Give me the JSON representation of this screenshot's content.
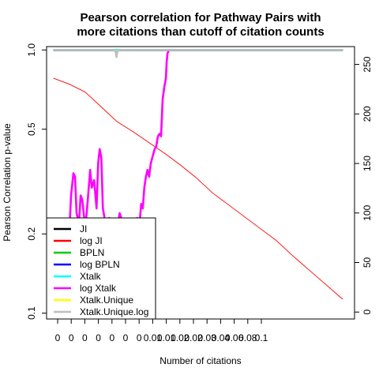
{
  "chart_data": {
    "type": "line",
    "title": [
      "Pearson correlation for Pathway Pairs with",
      "more citations than cutoff of citation counts"
    ],
    "xlabel": "Number of citations",
    "ylabel": "Pearson Correlation p-value",
    "x_tick_labels": [
      "0",
      "0",
      "0",
      "0",
      "0",
      "0",
      "0",
      "0.01",
      "0.01",
      "0.02",
      "0.02",
      "0.03",
      "0.04",
      "0.06",
      "0.08",
      "0.1"
    ],
    "y_left": {
      "scale": "log",
      "range": [
        0.095,
        1.03
      ],
      "ticks": [
        1.0,
        0.5,
        0.2,
        0.1
      ],
      "tick_labels": [
        "1.0",
        "0.5",
        "0.2",
        "0.1"
      ]
    },
    "y_right": {
      "range": [
        -7,
        268
      ],
      "ticks": [
        0,
        50,
        100,
        150,
        200,
        250
      ],
      "tick_labels": [
        "0",
        "50",
        "100",
        "150",
        "200",
        "250"
      ]
    },
    "x_range": [
      -8.7,
      377.8
    ],
    "axis": "y_right",
    "series": [
      {
        "name": "JI",
        "color": "#000000",
        "axis": "left",
        "points": [
          [
            0,
            1.0
          ],
          [
            363,
            1.0
          ]
        ]
      },
      {
        "name": "log JI",
        "color": "#ff0000",
        "axis": "right",
        "points": [
          [
            0,
            236
          ],
          [
            20,
            230
          ],
          [
            40,
            222
          ],
          [
            60,
            207
          ],
          [
            80,
            192
          ],
          [
            100,
            182
          ],
          [
            120,
            171
          ],
          [
            140,
            160
          ],
          [
            160,
            148
          ],
          [
            180,
            135
          ],
          [
            200,
            120
          ],
          [
            220,
            108
          ],
          [
            240,
            96
          ],
          [
            260,
            84
          ],
          [
            280,
            72
          ],
          [
            300,
            57
          ],
          [
            320,
            43
          ],
          [
            340,
            29
          ],
          [
            360,
            15
          ],
          [
            363,
            13
          ]
        ]
      },
      {
        "name": "BPLN",
        "color": "#00cd00",
        "axis": "left",
        "points": [
          [
            0,
            1.0
          ],
          [
            363,
            1.0
          ]
        ]
      },
      {
        "name": "log BPLN",
        "color": "#0000ff",
        "axis": "left",
        "points": [
          [
            0,
            1.0
          ],
          [
            363,
            1.0
          ]
        ]
      },
      {
        "name": "Xtalk",
        "color": "#00ffff",
        "axis": "left",
        "points": [
          [
            0,
            1.0
          ],
          [
            363,
            1.0
          ]
        ]
      },
      {
        "name": "log Xtalk",
        "color": "#ff00ff",
        "axis": "left",
        "points": [
          [
            18,
            0.14
          ],
          [
            20,
            0.21
          ],
          [
            22,
            0.28
          ],
          [
            25,
            0.34
          ],
          [
            27,
            0.33
          ],
          [
            29,
            0.24
          ],
          [
            32,
            0.22
          ],
          [
            34,
            0.28
          ],
          [
            36,
            0.27
          ],
          [
            40,
            0.21
          ],
          [
            43,
            0.27
          ],
          [
            46,
            0.35
          ],
          [
            48,
            0.3
          ],
          [
            51,
            0.32
          ],
          [
            54,
            0.25
          ],
          [
            56,
            0.37
          ],
          [
            58,
            0.42
          ],
          [
            60,
            0.39
          ],
          [
            62,
            0.25
          ],
          [
            64,
            0.23
          ],
          [
            67,
            0.2
          ],
          [
            70,
            0.23
          ],
          [
            73,
            0.2
          ],
          [
            77,
            0.22
          ],
          [
            79,
            0.2
          ],
          [
            83,
            0.24
          ],
          [
            87,
            0.22
          ],
          [
            90,
            0.2
          ],
          [
            93,
            0.22
          ],
          [
            96,
            0.21
          ],
          [
            99,
            0.22
          ],
          [
            102,
            0.2
          ],
          [
            105,
            0.23
          ],
          [
            108,
            0.22
          ],
          [
            110,
            0.26
          ],
          [
            112,
            0.25
          ],
          [
            114,
            0.3
          ],
          [
            116,
            0.33
          ],
          [
            118,
            0.35
          ],
          [
            120,
            0.33
          ],
          [
            122,
            0.37
          ],
          [
            125,
            0.4
          ],
          [
            127,
            0.42
          ],
          [
            129,
            0.43
          ],
          [
            131,
            0.47
          ],
          [
            133,
            0.48
          ],
          [
            135,
            0.47
          ],
          [
            137,
            0.65
          ],
          [
            139,
            0.72
          ],
          [
            141,
            0.78
          ],
          [
            142,
            0.9
          ],
          [
            143,
            0.97
          ],
          [
            145,
            1.0
          ]
        ]
      },
      {
        "name": "Xtalk.Unique",
        "color": "#ffff00",
        "axis": "left",
        "points": [
          [
            77,
            1.0
          ],
          [
            79,
            0.96
          ],
          [
            81,
            1.0
          ]
        ]
      },
      {
        "name": "Xtalk.Unique.log",
        "color": "#bebebe",
        "axis": "left",
        "points": [
          [
            0,
            1.0
          ],
          [
            76,
            1.0
          ],
          [
            78,
            0.985
          ],
          [
            79,
            0.94
          ],
          [
            80,
            0.985
          ],
          [
            82,
            1.0
          ],
          [
            363,
            1.0
          ]
        ]
      }
    ],
    "legend": {
      "position": "bottom-left",
      "entries": [
        "JI",
        "log JI",
        "BPLN",
        "log BPLN",
        "Xtalk",
        "log Xtalk",
        "Xtalk.Unique",
        "Xtalk.Unique.log"
      ]
    }
  }
}
